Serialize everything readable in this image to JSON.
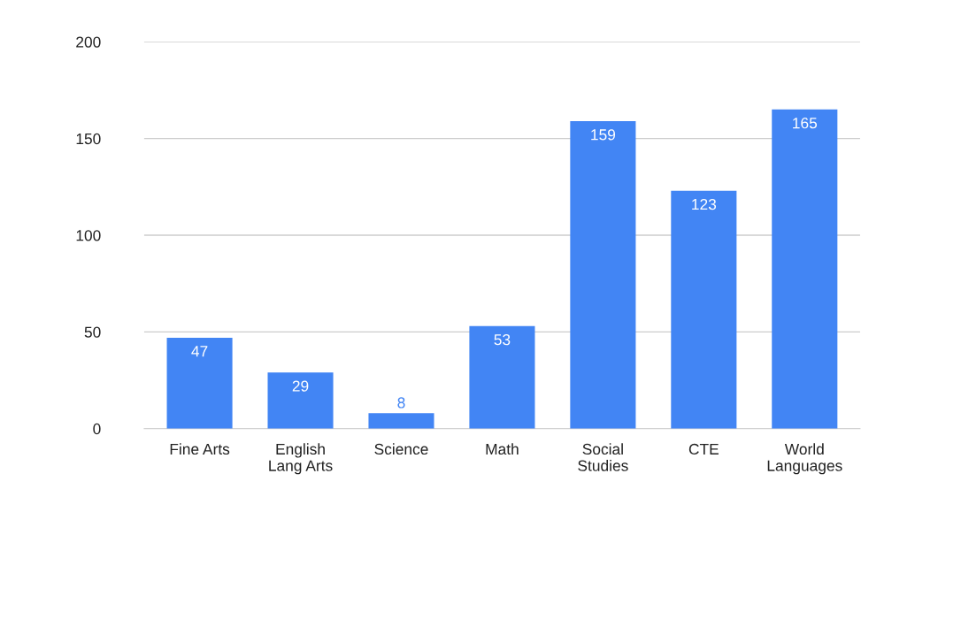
{
  "chart_data": {
    "type": "bar",
    "categories": [
      "Fine Arts",
      "English\nLang Arts",
      "Science",
      "Math",
      "Social\nStudies",
      "CTE",
      "World\nLanguages"
    ],
    "values": [
      47,
      29,
      8,
      53,
      159,
      123,
      165
    ],
    "color": "#4285f4",
    "ylim": [
      0,
      200
    ],
    "yticks": [
      0,
      50,
      100,
      150,
      200
    ],
    "grid": "y",
    "data_labels": true
  }
}
